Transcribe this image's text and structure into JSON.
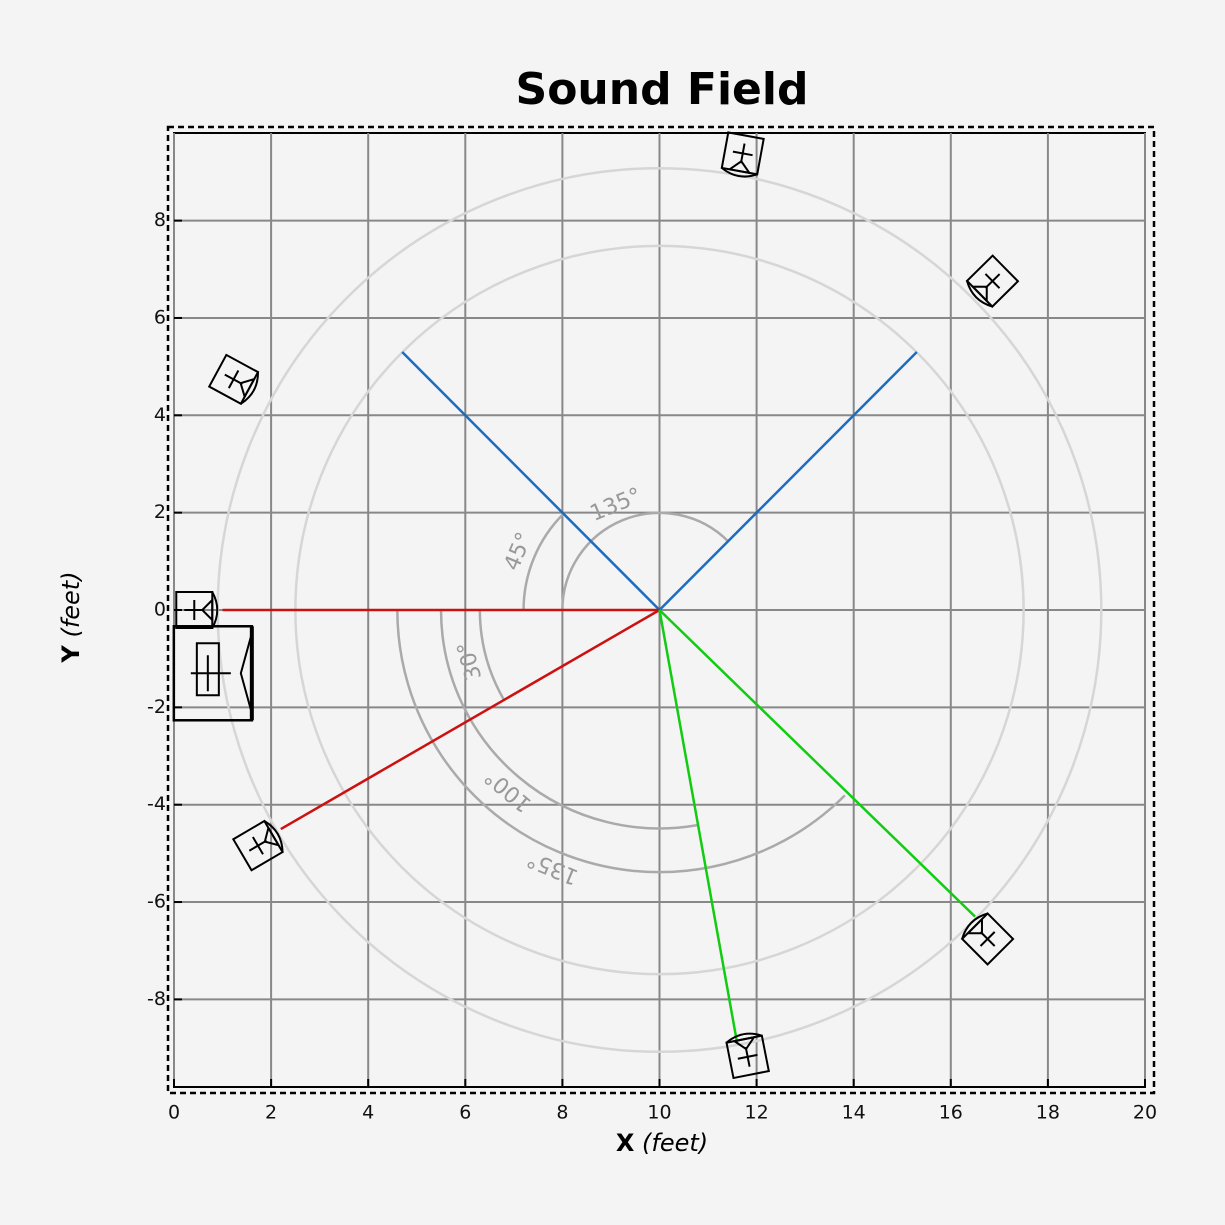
{
  "chart_data": {
    "type": "sound-field",
    "title": "Sound Field",
    "xlabel": "X",
    "xlabel_unit": "(feet)",
    "ylabel": "Y",
    "ylabel_unit": "(feet)",
    "xlim": [
      0,
      20
    ],
    "ylim": [
      -9.8,
      9.8
    ],
    "xticks": [
      0,
      2,
      4,
      6,
      8,
      10,
      12,
      14,
      16,
      18,
      20
    ],
    "yticks": [
      -8,
      -6,
      -4,
      -2,
      0,
      2,
      4,
      6,
      8
    ],
    "grid": true,
    "center": [
      10,
      0
    ],
    "circles": [
      7.5,
      9.1
    ],
    "arcs": [
      {
        "radius": 2,
        "start": 45,
        "end": 180,
        "label": "135°"
      },
      {
        "radius": 2.8,
        "start": 135,
        "end": 180,
        "label": "45°"
      },
      {
        "radius": 3.7,
        "start": 180,
        "end": 210,
        "label": "30°"
      },
      {
        "radius": 4.5,
        "start": 180,
        "end": 280,
        "label": "100°"
      },
      {
        "radius": 5.4,
        "start": 180,
        "end": 315,
        "label": "135°"
      }
    ],
    "rays": [
      {
        "color": "#1a6cc4",
        "x": [
          10,
          4.7
        ],
        "y": [
          0,
          5.3
        ]
      },
      {
        "color": "#1a6cc4",
        "x": [
          10,
          15.3
        ],
        "y": [
          0,
          5.3
        ]
      },
      {
        "color": "#cc1111",
        "x": [
          10,
          1
        ],
        "y": [
          0,
          0
        ]
      },
      {
        "color": "#cc1111",
        "x": [
          10,
          2.2
        ],
        "y": [
          0,
          -4.5
        ]
      },
      {
        "color": "#11cc11",
        "x": [
          10,
          16.5
        ],
        "y": [
          0,
          -6.3
        ]
      },
      {
        "color": "#11cc11",
        "x": [
          10,
          11.6
        ],
        "y": [
          0,
          -8.9
        ]
      }
    ],
    "speakers": [
      {
        "x": 11.7,
        "y": 9.3
      },
      {
        "x": 16.8,
        "y": 6.7
      },
      {
        "x": 1.3,
        "y": 4.7
      },
      {
        "x": 0.5,
        "y": 0
      },
      {
        "x": 1.8,
        "y": -4.8
      },
      {
        "x": 16.7,
        "y": -6.7
      },
      {
        "x": 11.8,
        "y": -9.1
      }
    ],
    "subwoofer": {
      "x": 0.8,
      "y": -1.3
    }
  }
}
